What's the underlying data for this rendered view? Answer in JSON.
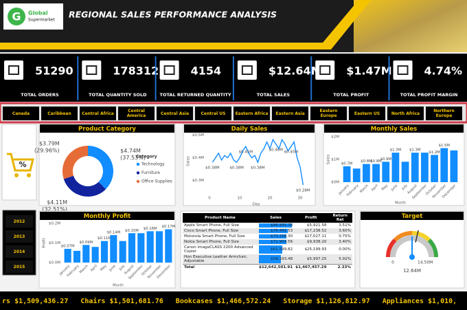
{
  "header": {
    "logo_top": "Global",
    "logo_bottom": "Supermarket",
    "title": "REGIONAL SALES PERFORMANCE ANALYSIS"
  },
  "kpis": [
    {
      "value": "51290",
      "label": "TOTAL ORDERS"
    },
    {
      "value": "178312",
      "label": "TOTAL QUANTITY SOLD"
    },
    {
      "value": "4154",
      "label": "TOTAL RETURNED QUANTITY"
    },
    {
      "value": "$12.64M",
      "label": "TOTAL SALES"
    },
    {
      "value": "$1.47M",
      "label": "TOTAL PROFIT"
    },
    {
      "value": "4.74%",
      "label": "TOTAL PROFIT MARGIN"
    }
  ],
  "regions": [
    "Canada",
    "Caribbean",
    "Central Africa",
    "Central America",
    "Central Asia",
    "Central US",
    "Eastern Africa",
    "Eastern Asia",
    "Eastern Europe",
    "Eastern US",
    "North Africa",
    "Northern Europe"
  ],
  "years": [
    "2012",
    "2013",
    "2014",
    "2015"
  ],
  "chart_data": [
    {
      "type": "pie",
      "title": "Product Category",
      "legend_title": "Category",
      "categories": [
        "Technology",
        "Furniture",
        "Office Supplies"
      ],
      "values": [
        37.53,
        32.51,
        29.96
      ],
      "value_labels": [
        "(37.53%)",
        "(32.51%)",
        "(29.96%)"
      ],
      "amounts": [
        4.74,
        4.11,
        3.79
      ],
      "amount_labels": [
        "$4.74M",
        "$4.11M",
        "$3.79M"
      ],
      "colors": [
        "#118dff",
        "#12239e",
        "#e66c37"
      ]
    },
    {
      "type": "line",
      "title": "Daily Sales",
      "x_label": "Day",
      "y_label": "Sales",
      "color": "#118dff",
      "grid": false,
      "x": [
        1,
        2,
        3,
        4,
        5,
        6,
        7,
        8,
        9,
        10,
        11,
        12,
        13,
        14,
        15,
        16,
        17,
        18,
        19,
        20,
        21,
        22,
        23,
        24,
        25,
        26,
        27,
        28,
        29,
        30,
        31
      ],
      "values": [
        0.38,
        0.4,
        0.42,
        0.39,
        0.41,
        0.4,
        0.42,
        0.39,
        0.38,
        0.4,
        0.43,
        0.45,
        0.42,
        0.4,
        0.41,
        0.38,
        0.42,
        0.44,
        0.47,
        0.44,
        0.48,
        0.46,
        0.44,
        0.48,
        0.46,
        0.43,
        0.45,
        0.47,
        0.4,
        0.36,
        0.28
      ],
      "value_labels": [
        "$0.38M",
        null,
        null,
        null,
        null,
        null,
        null,
        null,
        "$0.38M",
        null,
        null,
        "$0.45M",
        null,
        null,
        null,
        "$0.38M",
        null,
        null,
        null,
        null,
        null,
        "$0.46M",
        null,
        null,
        null,
        null,
        "$0.45M",
        null,
        null,
        null,
        "$0.28M"
      ],
      "xlim": [
        0,
        31
      ],
      "xticks": [
        0,
        10,
        20,
        30
      ],
      "ylim": [
        0.25,
        0.52
      ],
      "yticks": [
        {
          "value": 0.3,
          "label": "$0.3M"
        },
        {
          "value": 0.4,
          "label": "$0.4M"
        },
        {
          "value": 0.5,
          "label": "$0.5M"
        }
      ]
    },
    {
      "type": "bar",
      "title": "Monthly Sales",
      "x_label": "Month",
      "y_label": "Sales",
      "color": "#118dff",
      "grid": false,
      "categories": [
        "January",
        "February",
        "March",
        "April",
        "May",
        "June",
        "July",
        "August",
        "September",
        "October",
        "November",
        "December"
      ],
      "values": [
        0.7,
        0.6,
        0.8,
        0.8,
        0.9,
        1.3,
        0.9,
        1.3,
        1.3,
        1.2,
        1.5,
        1.4
      ],
      "value_labels": [
        "$0.7M",
        null,
        "$0.8M",
        "$0.8M",
        "$0.9M",
        "$1.3M",
        null,
        "$1.3M",
        null,
        "$1.2M",
        "$1.5M",
        null
      ],
      "ylim": [
        0,
        2
      ],
      "yticks": [
        {
          "value": 0,
          "label": "$0M"
        },
        {
          "value": 1,
          "label": "$1M"
        },
        {
          "value": 2,
          "label": "$2M"
        }
      ]
    },
    {
      "type": "bar",
      "title": "Monthly Profit",
      "x_label": "Month",
      "y_label": "Profit",
      "color": "#118dff",
      "grid": false,
      "categories": [
        "January",
        "February",
        "March",
        "April",
        "May",
        "June",
        "July",
        "August",
        "September",
        "October",
        "November",
        "December"
      ],
      "values": [
        0.07,
        0.06,
        0.09,
        0.08,
        0.11,
        0.14,
        0.11,
        0.15,
        0.15,
        0.16,
        0.16,
        0.17
      ],
      "value_labels": [
        "$0.07M",
        null,
        "$0.09M",
        null,
        "$0.11M",
        "$0.14M",
        null,
        "$0.15M",
        null,
        "$0.16M",
        null,
        "$0.17M"
      ],
      "ylim": [
        0,
        0.2
      ],
      "yticks": [
        {
          "value": 0,
          "label": "$0.0M"
        },
        {
          "value": 0.1,
          "label": "$0.1M"
        },
        {
          "value": 0.2,
          "label": "$0.2M"
        }
      ]
    },
    {
      "type": "gauge",
      "title": "Target",
      "value": 12.64,
      "value_label": "12.64M",
      "target": 14.5,
      "target_label": "14.50M",
      "ylim": [
        0,
        25.28
      ],
      "min_label": "0",
      "color": "#118dff",
      "band_colors": [
        "#e8302a",
        "#f28a1e",
        "#f5d327",
        "#3aa845"
      ]
    }
  ],
  "table": {
    "columns": [
      "Product Name",
      "Sales",
      "Profit",
      "Return Rat"
    ],
    "rows": [
      [
        "Apple Smart Phone, Full Size",
        "$86,935.78",
        "$5,921.58",
        "3.51%"
      ],
      [
        "Cisco Smart Phone, Full Size",
        "$76,441.53",
        "$17,238.52",
        "3.60%"
      ],
      [
        "Motorola Smart Phone, Full Size",
        "$73,156.30",
        "$17,027.11",
        "0.75%"
      ],
      [
        "Nokia Smart Phone, Full Size",
        "$71,904.56",
        "$9,938.20",
        "3.40%"
      ],
      [
        "Canon imageCLASS 2200 Advanced Copier",
        "$61,599.82",
        "$25,199.93",
        "0.00%"
      ],
      [
        "Hon Executive Leather Armchair, Adjustable",
        "$58,193.48",
        "$5,997.25",
        "5.92%"
      ]
    ],
    "total": [
      "Total",
      "$12,642,501.91",
      "$1,467,457.29",
      "2.33%"
    ]
  },
  "ticker": [
    {
      "name": "rs",
      "value": "$1,509,436.27"
    },
    {
      "name": "Chairs",
      "value": "$1,501,681.76"
    },
    {
      "name": "Bookcases",
      "value": "$1,466,572.24"
    },
    {
      "name": "Storage",
      "value": "$1,126,812.97"
    },
    {
      "name": "Appliances",
      "value": "$1,010,"
    }
  ]
}
